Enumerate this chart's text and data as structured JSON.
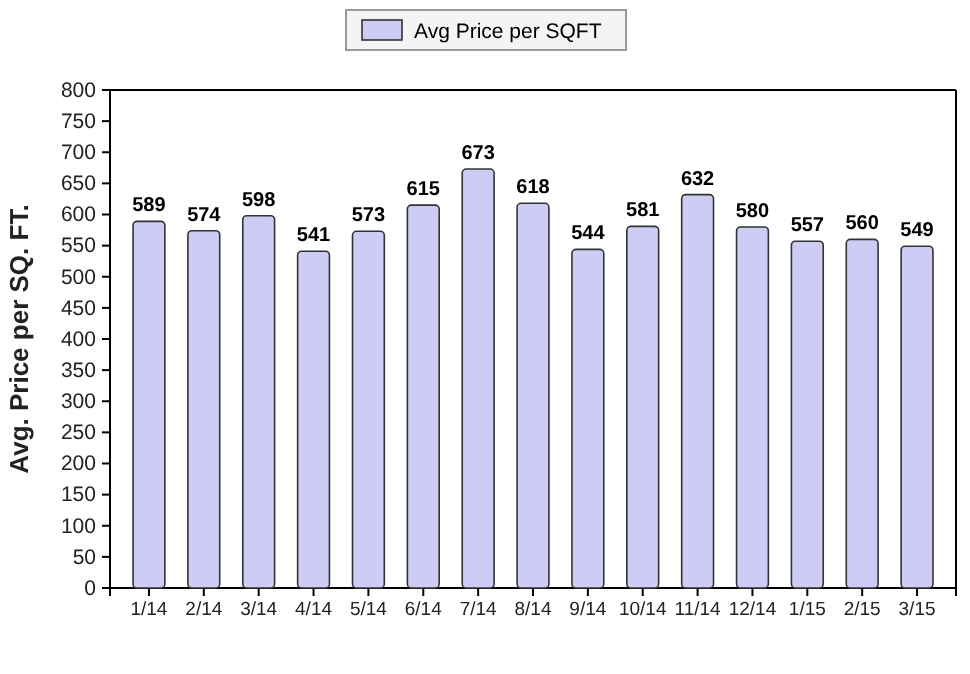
{
  "chart_data": {
    "type": "bar",
    "ylabel": "Avg. Price per SQ. FT.",
    "categories": [
      "1/14",
      "2/14",
      "3/14",
      "4/14",
      "5/14",
      "6/14",
      "7/14",
      "8/14",
      "9/14",
      "10/14",
      "11/14",
      "12/14",
      "1/15",
      "2/15",
      "3/15"
    ],
    "series": [
      {
        "name": "Avg Price per SQFT",
        "color": "#ccccf5",
        "values": [
          589,
          574,
          598,
          541,
          573,
          615,
          673,
          618,
          544,
          581,
          632,
          580,
          557,
          560,
          549
        ]
      }
    ],
    "ylim": [
      0,
      800
    ],
    "yticks": [
      0,
      50,
      100,
      150,
      200,
      250,
      300,
      350,
      400,
      450,
      500,
      550,
      600,
      650,
      700,
      750,
      800
    ],
    "data_labels": true,
    "legend": "top",
    "grid": false
  }
}
